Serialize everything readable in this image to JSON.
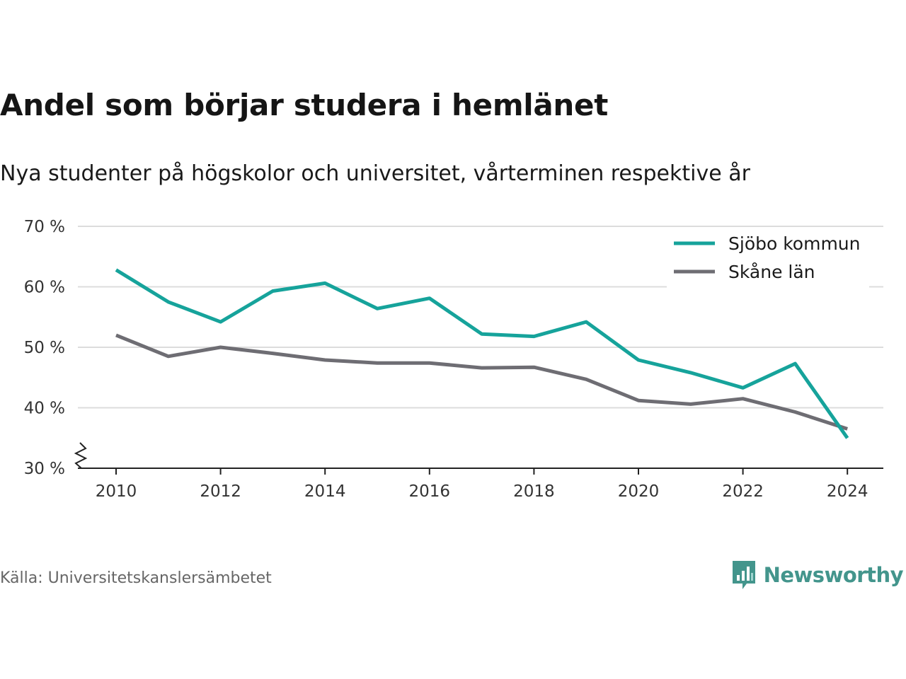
{
  "title": "Andel som börjar studera i hemlänet",
  "subtitle": "Nya studenter på högskolor och universitet, vårterminen respektive år",
  "source": "Källa: Universitetskanslersämbetet",
  "brand": {
    "name": "Newsworthy",
    "icon": "newsworthy-logo-icon",
    "color": "#43958c"
  },
  "chart_data": {
    "type": "line",
    "x": [
      2010,
      2011,
      2012,
      2013,
      2014,
      2015,
      2016,
      2017,
      2018,
      2019,
      2020,
      2021,
      2022,
      2023,
      2024
    ],
    "x_ticks": [
      "2010",
      "2012",
      "2014",
      "2016",
      "2018",
      "2020",
      "2022",
      "2024"
    ],
    "y_ticks": [
      "30 %",
      "40 %",
      "50 %",
      "60 %",
      "70 %"
    ],
    "ylim": [
      30,
      70
    ],
    "y_axis_break": true,
    "grid": "horizontal",
    "legend_position": "top-right",
    "series": [
      {
        "name": "Sjöbo kommun",
        "color": "#16a39b",
        "values": [
          62.8,
          57.5,
          54.2,
          59.3,
          60.6,
          56.4,
          58.1,
          52.2,
          51.8,
          54.2,
          47.9,
          45.8,
          43.3,
          47.3,
          35.0
        ]
      },
      {
        "name": "Skåne län",
        "color": "#6e6d73",
        "values": [
          52.0,
          48.5,
          50.0,
          49.0,
          47.9,
          47.4,
          47.4,
          46.6,
          46.7,
          44.7,
          41.2,
          40.6,
          41.5,
          39.3,
          36.5
        ]
      }
    ]
  }
}
